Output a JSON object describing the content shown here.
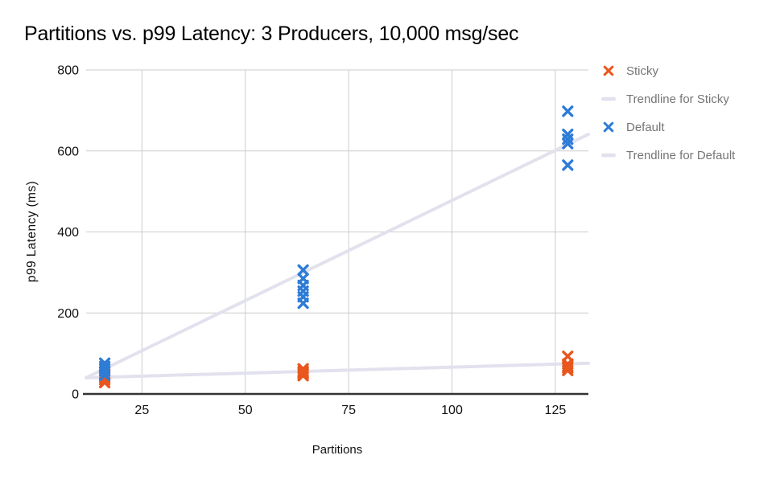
{
  "chart_data": {
    "type": "scatter",
    "title": "Partitions vs. p99 Latency: 3 Producers, 10,000 msg/sec",
    "xlabel": "Partitions",
    "ylabel": "p99 Latency (ms)",
    "xlim": [
      11.5,
      133
    ],
    "ylim": [
      0,
      800
    ],
    "x_ticks": [
      25,
      50,
      75,
      100,
      125
    ],
    "y_ticks": [
      0,
      200,
      400,
      600,
      800
    ],
    "grid": true,
    "legend_position": "right",
    "series": [
      {
        "name": "Sticky",
        "kind": "scatter",
        "marker": "x",
        "color": "#E8571E",
        "points": [
          [
            16,
            28
          ],
          [
            16,
            35
          ],
          [
            16,
            40
          ],
          [
            16,
            45
          ],
          [
            16,
            50
          ],
          [
            64,
            45
          ],
          [
            64,
            50
          ],
          [
            64,
            53
          ],
          [
            64,
            56
          ],
          [
            64,
            62
          ],
          [
            128,
            58
          ],
          [
            128,
            64
          ],
          [
            128,
            68
          ],
          [
            128,
            74
          ],
          [
            128,
            93
          ]
        ]
      },
      {
        "name": "Trendline for Sticky",
        "kind": "line",
        "color": "#E2E2EE",
        "points": [
          [
            11.5,
            40
          ],
          [
            133,
            76
          ]
        ]
      },
      {
        "name": "Default",
        "kind": "scatter",
        "marker": "x",
        "color": "#2E7CD6",
        "points": [
          [
            16,
            46
          ],
          [
            16,
            56
          ],
          [
            16,
            62
          ],
          [
            16,
            68
          ],
          [
            16,
            76
          ],
          [
            64,
            224
          ],
          [
            64,
            240
          ],
          [
            64,
            254
          ],
          [
            64,
            268
          ],
          [
            64,
            285
          ],
          [
            64,
            306
          ],
          [
            128,
            565
          ],
          [
            128,
            618
          ],
          [
            128,
            629
          ],
          [
            128,
            641
          ],
          [
            128,
            698
          ]
        ]
      },
      {
        "name": "Trendline for Default",
        "kind": "line",
        "color": "#E2E2EE",
        "points": [
          [
            11.5,
            40
          ],
          [
            133,
            641
          ]
        ]
      }
    ]
  },
  "legend": {
    "items": [
      {
        "label": "Sticky",
        "marker": "x",
        "color": "#E8571E"
      },
      {
        "label": "Trendline for Sticky",
        "marker": "line",
        "color": "#E2E2EE"
      },
      {
        "label": "Default",
        "marker": "x",
        "color": "#2E7CD6"
      },
      {
        "label": "Trendline for Default",
        "marker": "line",
        "color": "#E2E2EE"
      }
    ]
  },
  "colors": {
    "gridline": "#CCCCCC",
    "axis_line": "#333333",
    "tick_text": "#111111",
    "legend_text": "#757575",
    "title_text": "#000000",
    "background": "#FFFFFF"
  }
}
